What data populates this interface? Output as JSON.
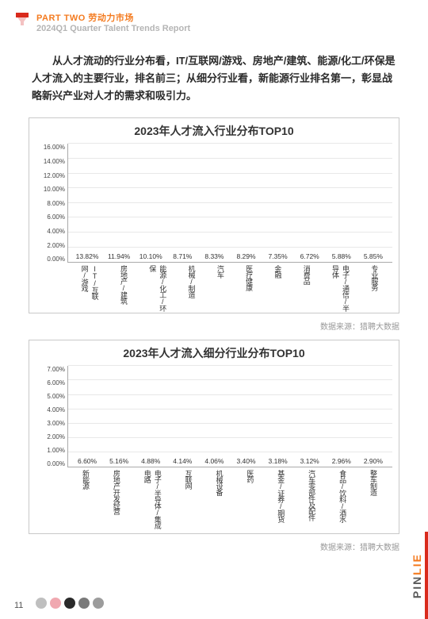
{
  "header": {
    "part": "PART TWO 劳动力市场",
    "subtitle": "2024Q1 Quarter Talent Trends Report"
  },
  "intro": "从人才流动的行业分布看，IT/互联网/游戏、房地产/建筑、能源/化工/环保是人才流入的主要行业，排名前三；从细分行业看，新能源行业排名第一，彰显战略新兴产业对人才的需求和吸引力。",
  "chart1": {
    "title": "2023年人才流入行业分布TOP10",
    "ymax": 16,
    "ystep": 2,
    "categories": [
      "IT/互联网/游戏",
      "房地产/建筑",
      "能源/化工/环保",
      "机械/制造",
      "汽车",
      "医疗健康",
      "金融",
      "消费品",
      "电子/通信/半导体",
      "专业服务"
    ],
    "values": [
      13.82,
      11.94,
      10.1,
      8.71,
      8.33,
      8.29,
      7.35,
      6.72,
      5.88,
      5.85
    ],
    "labels": [
      "13.82%",
      "11.94%",
      "10.10%",
      "8.71%",
      "8.33%",
      "8.29%",
      "7.35%",
      "6.72%",
      "5.88%",
      "5.85%"
    ],
    "source": "数据来源：猎聘大数据"
  },
  "chart2": {
    "title": "2023年人才流入细分行业分布TOP10",
    "ymax": 7,
    "ystep": 1,
    "categories": [
      "新能源",
      "房地产开发经营",
      "电子/半导体/集成电路",
      "互联网",
      "机械设备",
      "医药",
      "基金/证券/期货",
      "汽车零部件及配件",
      "食品/饮料/酒水",
      "整车制造"
    ],
    "values": [
      6.6,
      5.16,
      4.88,
      4.14,
      4.06,
      3.4,
      3.18,
      3.12,
      2.96,
      2.9
    ],
    "labels": [
      "6.60%",
      "5.16%",
      "4.88%",
      "4.14%",
      "4.06%",
      "3.40%",
      "3.18%",
      "3.12%",
      "2.96%",
      "2.90%"
    ],
    "source": "数据来源：猎聘大数据"
  },
  "page_number": "11",
  "brand": {
    "a": "LIE",
    "b": "PIN"
  },
  "colors": {
    "bar_gradient_top": "#ff9c1a",
    "bar_gradient_bottom": "#f75a0a",
    "footer_dots": [
      "#bfbfbf",
      "#f0a8b0",
      "#2a2a2a",
      "#7a7a7a",
      "#9c9c9c"
    ]
  }
}
